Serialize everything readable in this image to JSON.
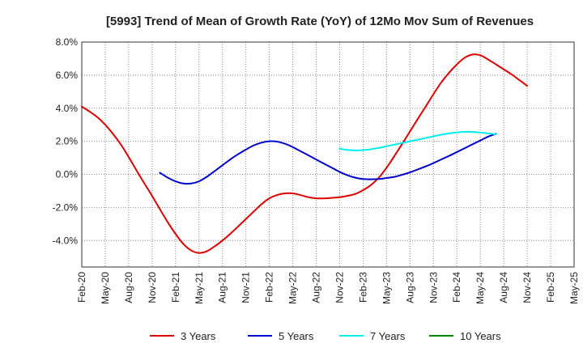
{
  "chart_data": {
    "type": "line",
    "title": "[5993]  Trend of Mean of Growth Rate (YoY) of 12Mo Mov Sum of Revenues",
    "xlabel": "",
    "ylabel": "",
    "ylim": [
      -5.6,
      8.0
    ],
    "y_ticks": [
      "8.0%",
      "6.0%",
      "4.0%",
      "2.0%",
      "0.0%",
      "-2.0%",
      "-4.0%"
    ],
    "y_tick_values": [
      8,
      6,
      4,
      2,
      0,
      -2,
      -4
    ],
    "categories": [
      "Feb-20",
      "May-20",
      "Aug-20",
      "Nov-20",
      "Feb-21",
      "May-21",
      "Aug-21",
      "Nov-21",
      "Feb-22",
      "May-22",
      "Aug-22",
      "Nov-22",
      "Feb-23",
      "May-23",
      "Aug-23",
      "Nov-23",
      "Feb-24",
      "May-24",
      "Aug-24",
      "Nov-24",
      "Feb-25",
      "May-25"
    ],
    "grid": true,
    "legend_position": "bottom",
    "series": [
      {
        "name": "3 Years",
        "color": "#dd0000",
        "points": [
          [
            0,
            4.1
          ],
          [
            0.33,
            3.8
          ],
          [
            0.67,
            3.45
          ],
          [
            1,
            3.0
          ],
          [
            1.33,
            2.45
          ],
          [
            1.67,
            1.8
          ],
          [
            2,
            1.05
          ],
          [
            2.33,
            0.25
          ],
          [
            2.67,
            -0.55
          ],
          [
            3,
            -1.3
          ],
          [
            3.33,
            -2.1
          ],
          [
            3.67,
            -2.9
          ],
          [
            4,
            -3.6
          ],
          [
            4.33,
            -4.2
          ],
          [
            4.67,
            -4.6
          ],
          [
            5,
            -4.75
          ],
          [
            5.33,
            -4.65
          ],
          [
            5.67,
            -4.35
          ],
          [
            6,
            -4.0
          ],
          [
            6.33,
            -3.6
          ],
          [
            6.67,
            -3.15
          ],
          [
            7,
            -2.7
          ],
          [
            7.33,
            -2.25
          ],
          [
            7.67,
            -1.8
          ],
          [
            8,
            -1.45
          ],
          [
            8.33,
            -1.25
          ],
          [
            8.67,
            -1.15
          ],
          [
            9,
            -1.15
          ],
          [
            9.33,
            -1.25
          ],
          [
            9.67,
            -1.38
          ],
          [
            10,
            -1.45
          ],
          [
            10.33,
            -1.45
          ],
          [
            10.67,
            -1.42
          ],
          [
            11,
            -1.38
          ],
          [
            11.33,
            -1.3
          ],
          [
            11.67,
            -1.18
          ],
          [
            12,
            -0.95
          ],
          [
            12.33,
            -0.65
          ],
          [
            12.67,
            -0.2
          ],
          [
            13,
            0.4
          ],
          [
            13.33,
            1.1
          ],
          [
            13.67,
            1.85
          ],
          [
            14,
            2.6
          ],
          [
            14.33,
            3.35
          ],
          [
            14.67,
            4.1
          ],
          [
            15,
            4.85
          ],
          [
            15.33,
            5.55
          ],
          [
            15.67,
            6.15
          ],
          [
            16,
            6.65
          ],
          [
            16.33,
            7.05
          ],
          [
            16.67,
            7.25
          ],
          [
            17,
            7.2
          ],
          [
            17.33,
            6.95
          ],
          [
            17.67,
            6.65
          ],
          [
            18,
            6.35
          ],
          [
            18.33,
            6.05
          ],
          [
            18.67,
            5.7
          ],
          [
            19,
            5.35
          ]
        ]
      },
      {
        "name": "5 Years",
        "color": "#0000cc",
        "points": [
          [
            3.33,
            0.1
          ],
          [
            3.67,
            -0.2
          ],
          [
            4,
            -0.42
          ],
          [
            4.33,
            -0.55
          ],
          [
            4.67,
            -0.55
          ],
          [
            5,
            -0.42
          ],
          [
            5.33,
            -0.15
          ],
          [
            5.67,
            0.2
          ],
          [
            6,
            0.55
          ],
          [
            6.33,
            0.9
          ],
          [
            6.67,
            1.22
          ],
          [
            7,
            1.5
          ],
          [
            7.33,
            1.75
          ],
          [
            7.67,
            1.92
          ],
          [
            8,
            2.0
          ],
          [
            8.33,
            1.98
          ],
          [
            8.67,
            1.85
          ],
          [
            9,
            1.65
          ],
          [
            9.33,
            1.4
          ],
          [
            9.67,
            1.15
          ],
          [
            10,
            0.9
          ],
          [
            10.33,
            0.65
          ],
          [
            10.67,
            0.4
          ],
          [
            11,
            0.15
          ],
          [
            11.33,
            -0.05
          ],
          [
            11.67,
            -0.2
          ],
          [
            12,
            -0.28
          ],
          [
            12.33,
            -0.3
          ],
          [
            12.67,
            -0.28
          ],
          [
            13,
            -0.22
          ],
          [
            13.33,
            -0.15
          ],
          [
            13.67,
            -0.02
          ],
          [
            14,
            0.12
          ],
          [
            14.33,
            0.3
          ],
          [
            14.67,
            0.48
          ],
          [
            15,
            0.68
          ],
          [
            15.33,
            0.9
          ],
          [
            15.67,
            1.12
          ],
          [
            16,
            1.35
          ],
          [
            16.33,
            1.58
          ],
          [
            16.67,
            1.82
          ],
          [
            17,
            2.05
          ],
          [
            17.33,
            2.28
          ],
          [
            17.67,
            2.45
          ]
        ]
      },
      {
        "name": "7 Years",
        "color": "#00eeee",
        "points": [
          [
            11,
            1.55
          ],
          [
            11.33,
            1.48
          ],
          [
            11.67,
            1.45
          ],
          [
            12,
            1.47
          ],
          [
            12.33,
            1.52
          ],
          [
            12.67,
            1.6
          ],
          [
            13,
            1.7
          ],
          [
            13.33,
            1.8
          ],
          [
            13.67,
            1.9
          ],
          [
            14,
            2.0
          ],
          [
            14.33,
            2.1
          ],
          [
            14.67,
            2.2
          ],
          [
            15,
            2.3
          ],
          [
            15.33,
            2.4
          ],
          [
            15.67,
            2.48
          ],
          [
            16,
            2.54
          ],
          [
            16.33,
            2.57
          ],
          [
            16.67,
            2.57
          ],
          [
            17,
            2.53
          ],
          [
            17.33,
            2.48
          ],
          [
            17.67,
            2.42
          ]
        ]
      },
      {
        "name": "10 Years",
        "color": "#008800",
        "points": []
      }
    ]
  }
}
